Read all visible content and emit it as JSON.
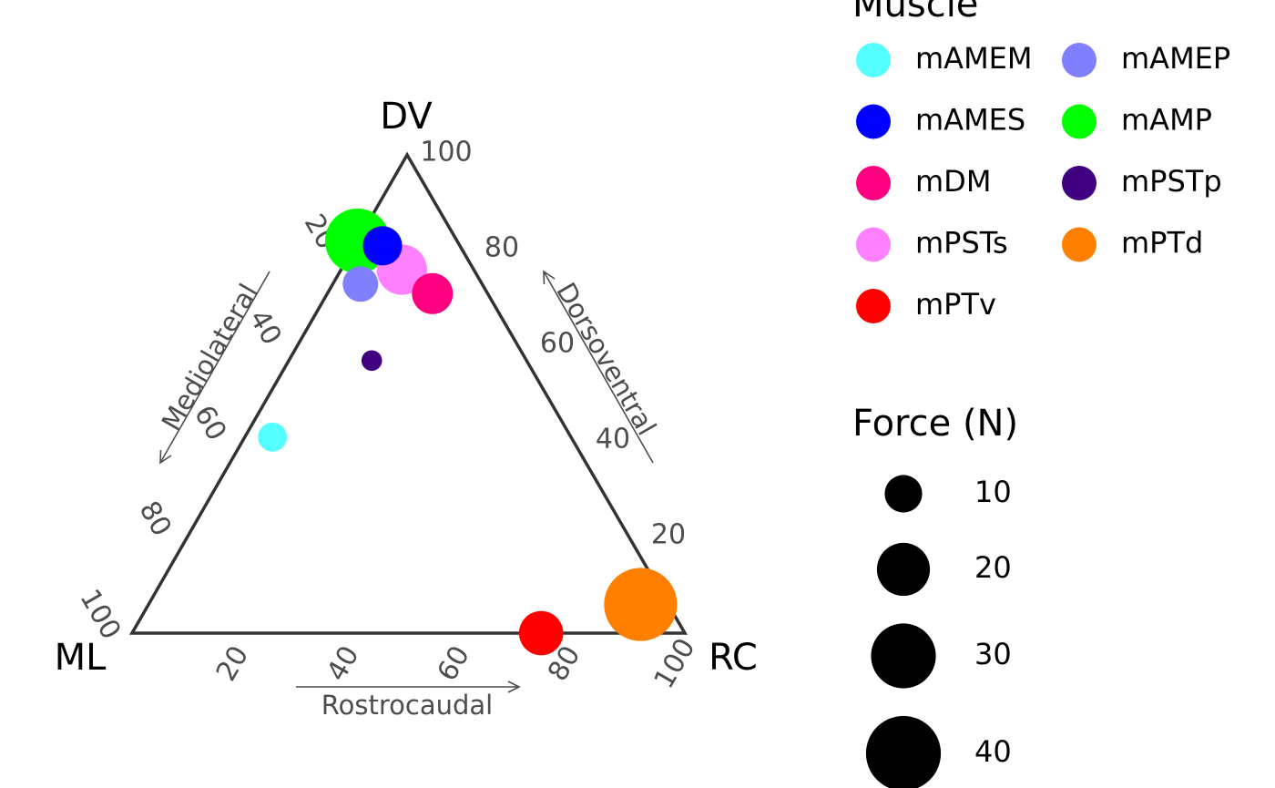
{
  "chart_data": {
    "type": "ternary-bubble",
    "axes": {
      "top": {
        "corner_label": "DV",
        "title": "Dorsoventral"
      },
      "left": {
        "corner_label": "ML",
        "title": "Mediolateral"
      },
      "right": {
        "corner_label": "RC",
        "title": "Rostrocaudal"
      }
    },
    "tick_labels": [
      "20",
      "40",
      "60",
      "80",
      "100"
    ],
    "tick_values": [
      20,
      40,
      60,
      80,
      100
    ],
    "legend_muscle_title": "Muscle",
    "legend_force_title": "Force (N)",
    "size_legend": [
      {
        "label": "10",
        "value": 10
      },
      {
        "label": "20",
        "value": 20
      },
      {
        "label": "30",
        "value": 30
      },
      {
        "label": "40",
        "value": 40
      }
    ],
    "series": [
      {
        "name": "mAMEM",
        "color": "#55FFFF",
        "dv": 41,
        "ml": 54,
        "rc": 5,
        "force": 6
      },
      {
        "name": "mAMEP",
        "color": "#8080FF",
        "dv": 73,
        "ml": 22,
        "rc": 5,
        "force": 9
      },
      {
        "name": "mAMES",
        "color": "#0000FF",
        "dv": 81,
        "ml": 14,
        "rc": 5,
        "force": 11
      },
      {
        "name": "mAMP",
        "color": "#00FF00",
        "dv": 82,
        "ml": 18,
        "rc": 0,
        "force": 30
      },
      {
        "name": "mDM",
        "color": "#FF0080",
        "dv": 71,
        "ml": 10,
        "rc": 19,
        "force": 12
      },
      {
        "name": "mPSTp",
        "color": "#400080",
        "dv": 57,
        "ml": 28,
        "rc": 15,
        "force": 3
      },
      {
        "name": "mPSTs",
        "color": "#FF80FF",
        "dv": 76,
        "ml": 13,
        "rc": 11,
        "force": 18
      },
      {
        "name": "mPTd",
        "color": "#FF8000",
        "dv": 6,
        "ml": 5,
        "rc": 89,
        "force": 38
      },
      {
        "name": "mPTv",
        "color": "#FF0000",
        "dv": 0,
        "ml": 26,
        "rc": 74,
        "force": 14
      }
    ]
  }
}
